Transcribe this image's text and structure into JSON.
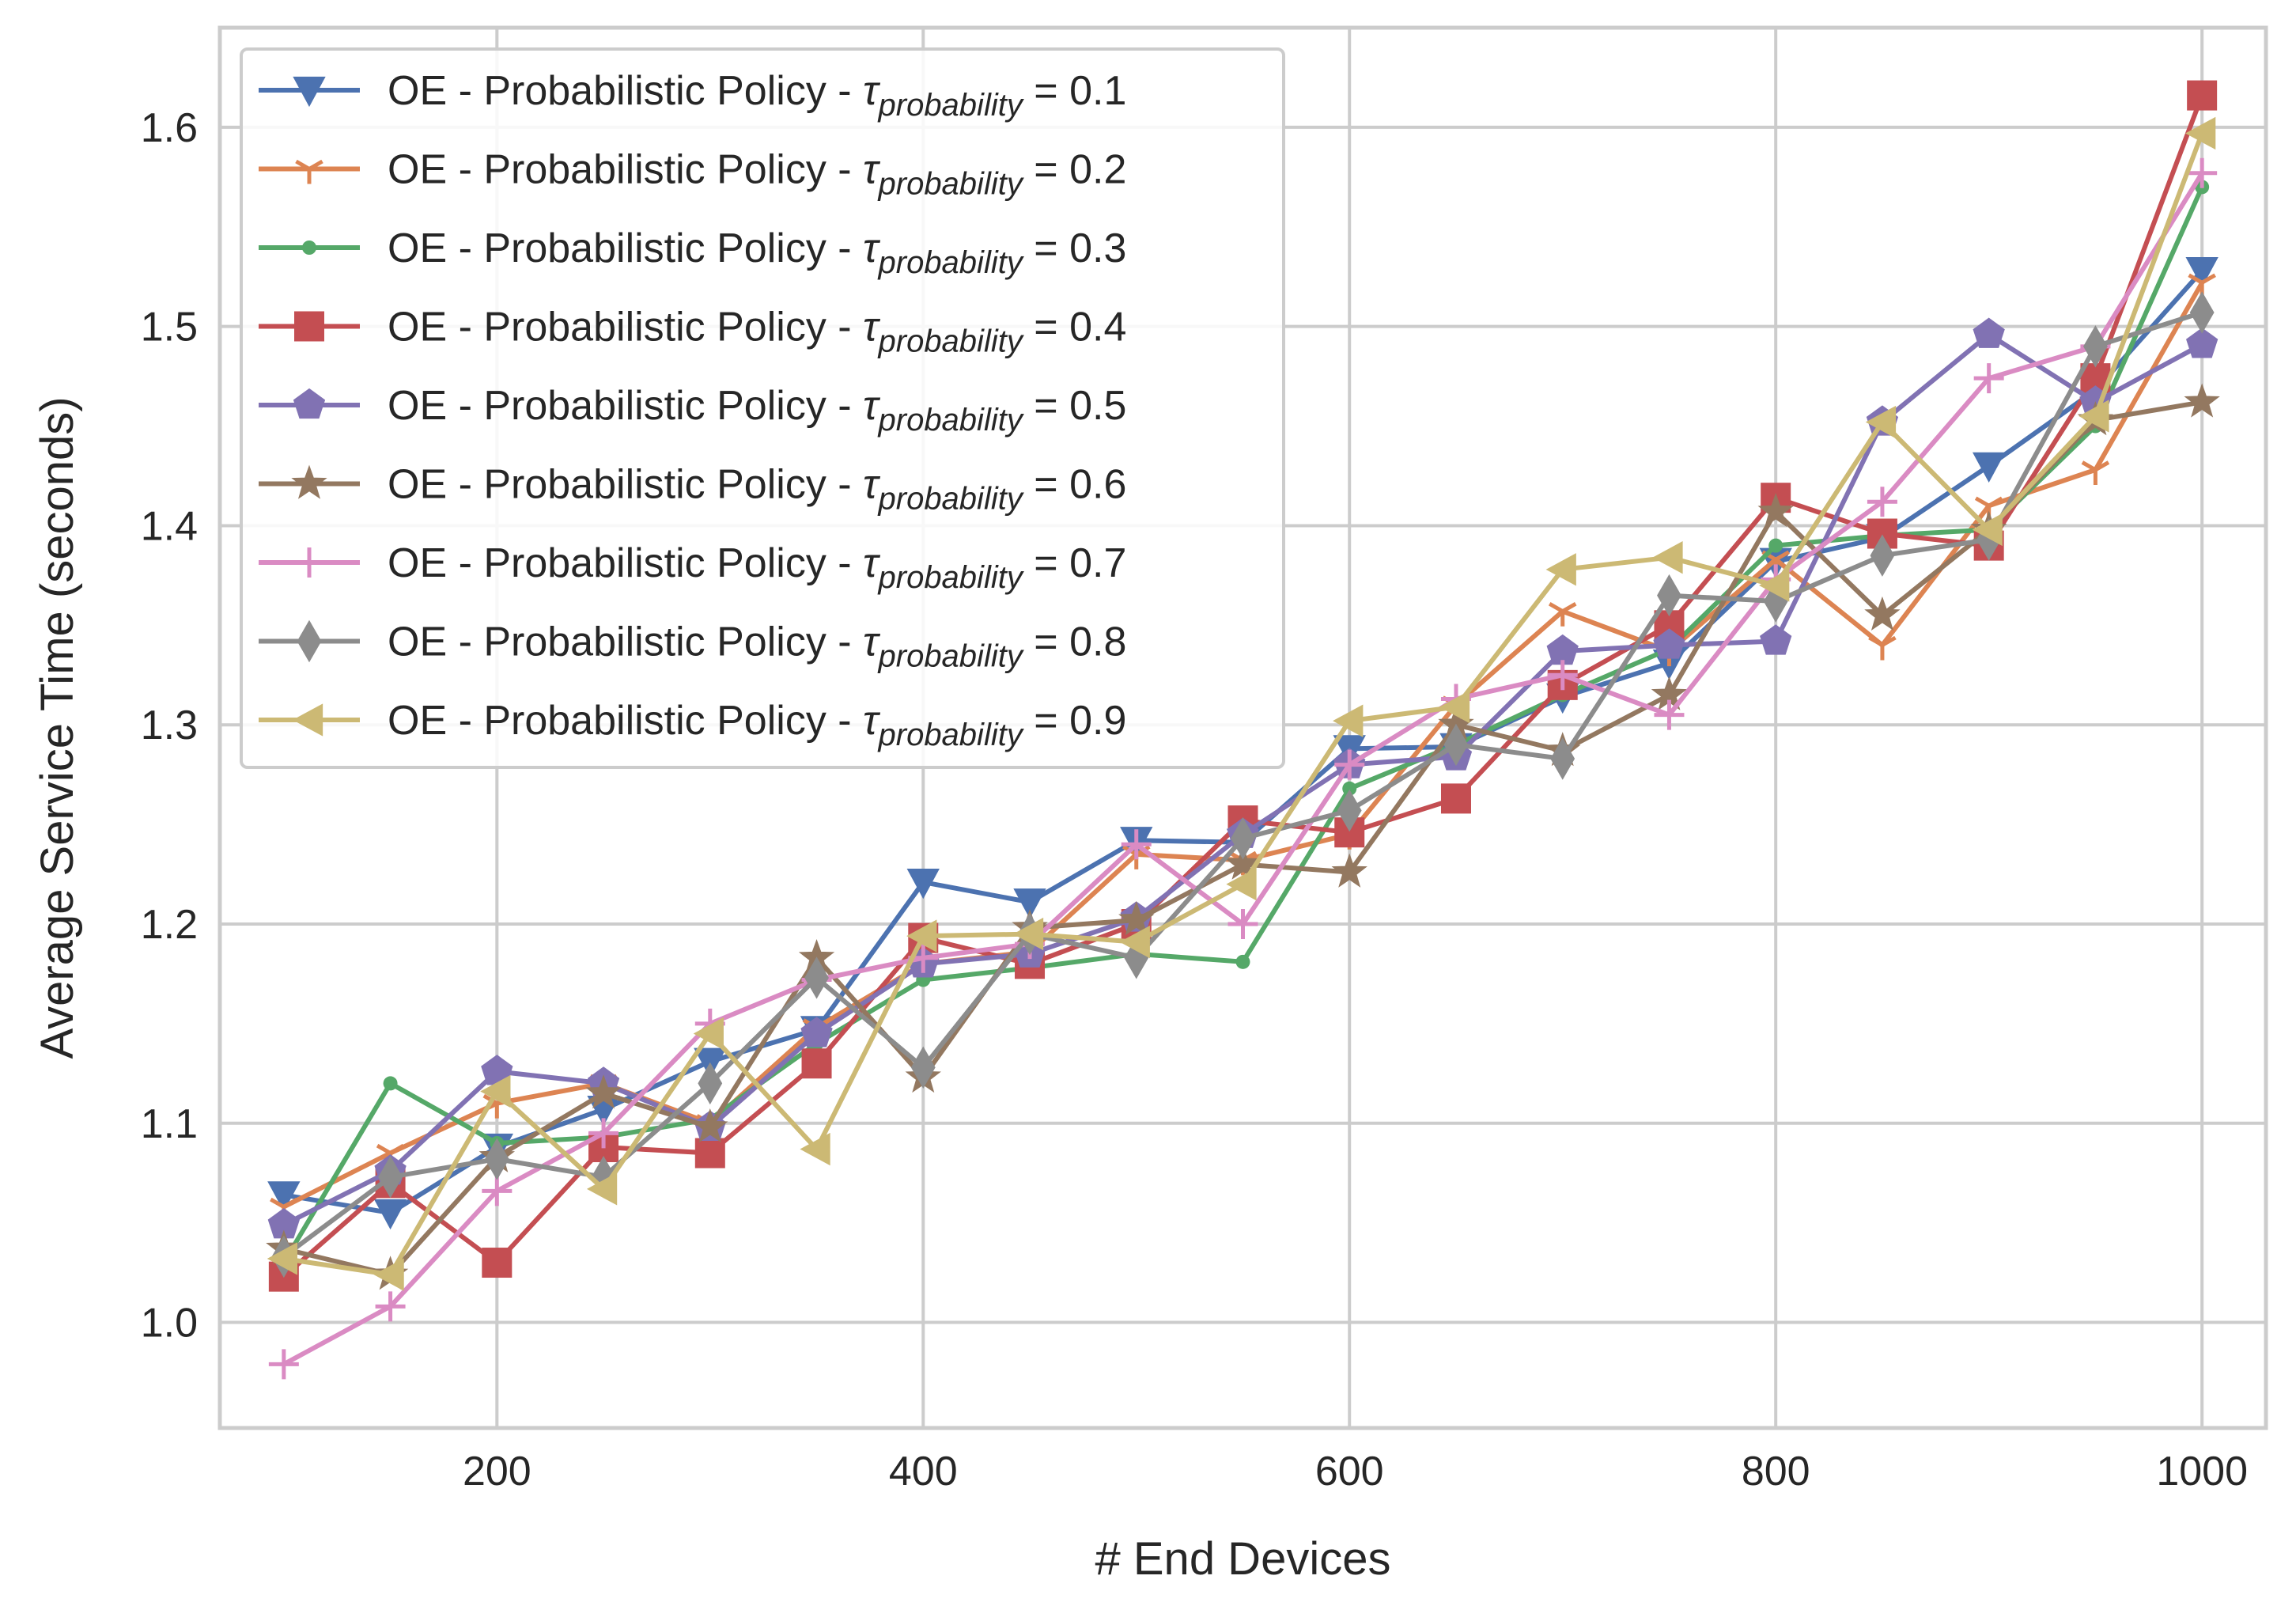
{
  "chart_data": {
    "type": "line",
    "title": "",
    "xlabel": "# End Devices",
    "ylabel": "Average Service Time (seconds)",
    "xlim": [
      70,
      1030
    ],
    "ylim": [
      0.947,
      1.65
    ],
    "xticks": [
      200,
      400,
      600,
      800,
      1000
    ],
    "yticks": [
      1.0,
      1.1,
      1.2,
      1.3,
      1.4,
      1.5,
      1.6
    ],
    "xtick_labels": [
      "200",
      "400",
      "600",
      "800",
      "1000"
    ],
    "ytick_labels": [
      "1.0",
      "1.1",
      "1.2",
      "1.3",
      "1.4",
      "1.5",
      "1.6"
    ],
    "grid": true,
    "legend_position": "top-left",
    "x": [
      100,
      150,
      200,
      250,
      300,
      350,
      400,
      450,
      500,
      550,
      600,
      650,
      700,
      750,
      800,
      850,
      900,
      950,
      1000
    ],
    "series": [
      {
        "name": "OE - Probabilistic Policy - τprobability = 0.1",
        "legend_prefix": "OE - Probabilistic Policy - ",
        "legend_tau": "τ",
        "legend_sub": "probability",
        "legend_value": " = 0.1",
        "color": "#4c72b0",
        "marker": "triangle-down",
        "values": [
          1.064,
          1.055,
          1.088,
          1.107,
          1.131,
          1.147,
          1.221,
          1.211,
          1.242,
          1.241,
          1.288,
          1.289,
          1.314,
          1.331,
          1.382,
          1.394,
          1.43,
          1.468,
          1.528
        ]
      },
      {
        "name": "OE - Probabilistic Policy - τprobability = 0.2",
        "legend_prefix": "OE - Probabilistic Policy - ",
        "legend_tau": "τ",
        "legend_sub": "probability",
        "legend_value": " = 0.2",
        "color": "#dd8452",
        "marker": "tri-down",
        "values": [
          1.058,
          1.085,
          1.11,
          1.12,
          1.1,
          1.148,
          1.18,
          1.186,
          1.235,
          1.232,
          1.245,
          1.31,
          1.357,
          1.337,
          1.383,
          1.34,
          1.41,
          1.428,
          1.522
        ]
      },
      {
        "name": "OE - Probabilistic Policy - τprobability = 0.3",
        "legend_prefix": "OE - Probabilistic Policy - ",
        "legend_tau": "τ",
        "legend_sub": "probability",
        "legend_value": " = 0.3",
        "color": "#55a868",
        "marker": "point",
        "values": [
          1.03,
          1.12,
          1.09,
          1.093,
          1.102,
          1.14,
          1.172,
          1.178,
          1.185,
          1.181,
          1.268,
          1.29,
          1.315,
          1.338,
          1.39,
          1.395,
          1.398,
          1.45,
          1.57
        ]
      },
      {
        "name": "OE - Probabilistic Policy - τprobability = 0.4",
        "legend_prefix": "OE - Probabilistic Policy - ",
        "legend_tau": "τ",
        "legend_sub": "probability",
        "legend_value": " = 0.4",
        "color": "#c44e52",
        "marker": "square",
        "values": [
          1.023,
          1.07,
          1.03,
          1.088,
          1.085,
          1.13,
          1.193,
          1.18,
          1.2,
          1.252,
          1.246,
          1.263,
          1.32,
          1.35,
          1.414,
          1.396,
          1.39,
          1.474,
          1.616
        ]
      },
      {
        "name": "OE - Probabilistic Policy - τprobability = 0.5",
        "legend_prefix": "OE - Probabilistic Policy - ",
        "legend_tau": "τ",
        "legend_sub": "probability",
        "legend_value": " = 0.5",
        "color": "#8172b3",
        "marker": "pentagon",
        "values": [
          1.049,
          1.076,
          1.126,
          1.12,
          1.098,
          1.145,
          1.18,
          1.185,
          1.203,
          1.245,
          1.28,
          1.284,
          1.337,
          1.34,
          1.342,
          1.452,
          1.496,
          1.462,
          1.491
        ]
      },
      {
        "name": "OE - Probabilistic Policy - τprobability = 0.6",
        "legend_prefix": "OE - Probabilistic Policy - ",
        "legend_tau": "τ",
        "legend_sub": "probability",
        "legend_value": " = 0.6",
        "color": "#937860",
        "marker": "star",
        "values": [
          1.037,
          1.024,
          1.083,
          1.115,
          1.098,
          1.183,
          1.123,
          1.198,
          1.202,
          1.23,
          1.226,
          1.3,
          1.287,
          1.315,
          1.407,
          1.355,
          1.398,
          1.453,
          1.462
        ]
      },
      {
        "name": "OE - Probabilistic Policy - τprobability = 0.7",
        "legend_prefix": "OE - Probabilistic Policy - ",
        "legend_tau": "τ",
        "legend_sub": "probability",
        "legend_value": " = 0.7",
        "color": "#da8bc3",
        "marker": "plus",
        "values": [
          0.979,
          1.008,
          1.066,
          1.095,
          1.15,
          1.172,
          1.183,
          1.19,
          1.24,
          1.2,
          1.28,
          1.313,
          1.325,
          1.305,
          1.373,
          1.412,
          1.474,
          1.49,
          1.577
        ]
      },
      {
        "name": "OE - Probabilistic Policy - τprobability = 0.8",
        "legend_prefix": "OE - Probabilistic Policy - ",
        "legend_tau": "τ",
        "legend_sub": "probability",
        "legend_value": " = 0.8",
        "color": "#8c8c8c",
        "marker": "thin-diamond",
        "values": [
          1.033,
          1.073,
          1.082,
          1.073,
          1.12,
          1.173,
          1.128,
          1.195,
          1.183,
          1.243,
          1.257,
          1.29,
          1.283,
          1.365,
          1.362,
          1.385,
          1.393,
          1.49,
          1.507
        ]
      },
      {
        "name": "OE - Probabilistic Policy - τprobability = 0.9",
        "legend_prefix": "OE - Probabilistic Policy - ",
        "legend_tau": "τ",
        "legend_sub": "probability",
        "legend_value": " = 0.9",
        "color": "#ccb974",
        "marker": "triangle-left",
        "values": [
          1.032,
          1.024,
          1.116,
          1.067,
          1.145,
          1.087,
          1.194,
          1.195,
          1.191,
          1.22,
          1.302,
          1.309,
          1.378,
          1.384,
          1.37,
          1.452,
          1.398,
          1.455,
          1.597
        ]
      }
    ]
  }
}
